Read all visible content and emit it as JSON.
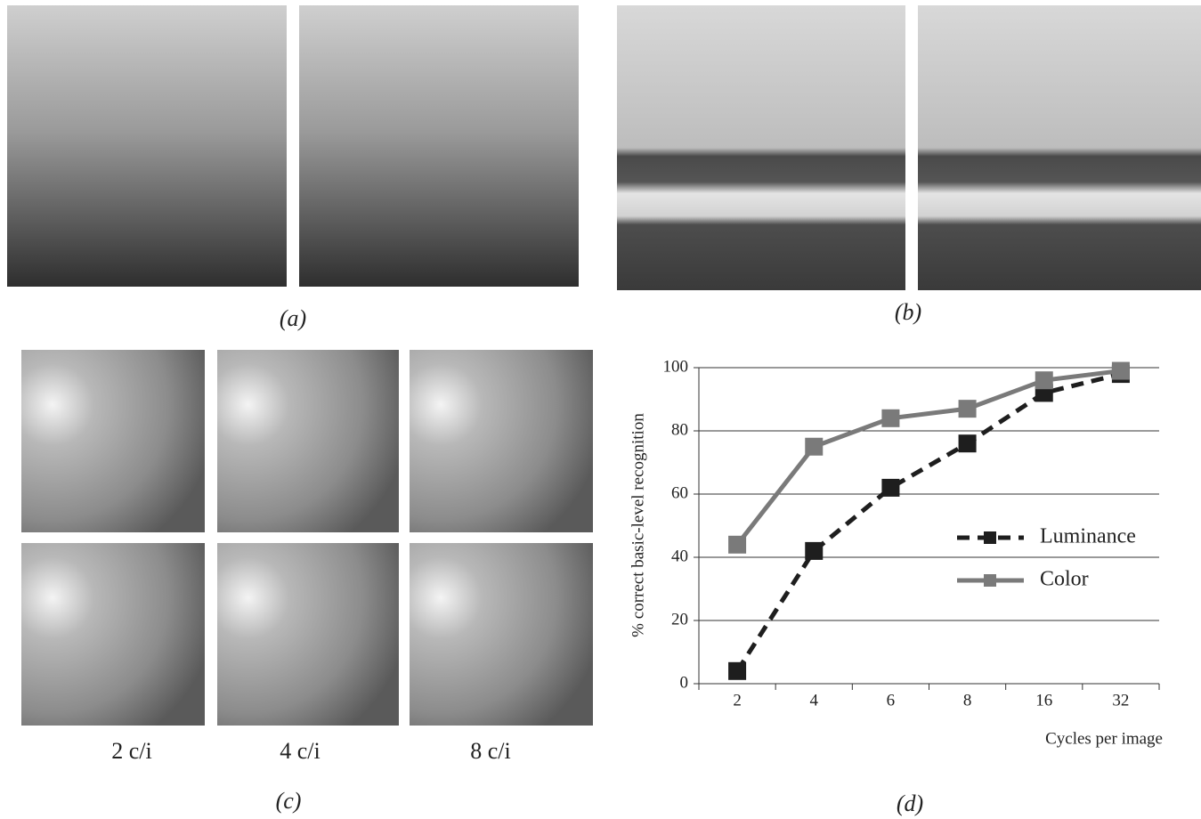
{
  "panel_labels": [
    "(a)",
    "(b)",
    "(c)",
    "(d)"
  ],
  "blur_labels": [
    "2 c/i",
    "4 c/i",
    "8 c/i"
  ],
  "chart_data": {
    "type": "line",
    "x_label": "Cycles per image",
    "y_label": "% correct basic-level recognition",
    "categories": [
      "2",
      "4",
      "6",
      "8",
      "16",
      "32"
    ],
    "series": [
      {
        "name": "Luminance",
        "color": "#1e1e1e",
        "line_style": "dashed",
        "values": [
          4,
          42,
          62,
          76,
          92,
          98
        ]
      },
      {
        "name": "Color",
        "color": "#7a7a7a",
        "line_style": "solid",
        "values": [
          44,
          75,
          84,
          87,
          96,
          99
        ]
      }
    ],
    "ylim": [
      0,
      100
    ],
    "yticks": [
      0,
      20,
      40,
      60,
      80,
      100
    ],
    "grid": true,
    "legend": "right"
  }
}
